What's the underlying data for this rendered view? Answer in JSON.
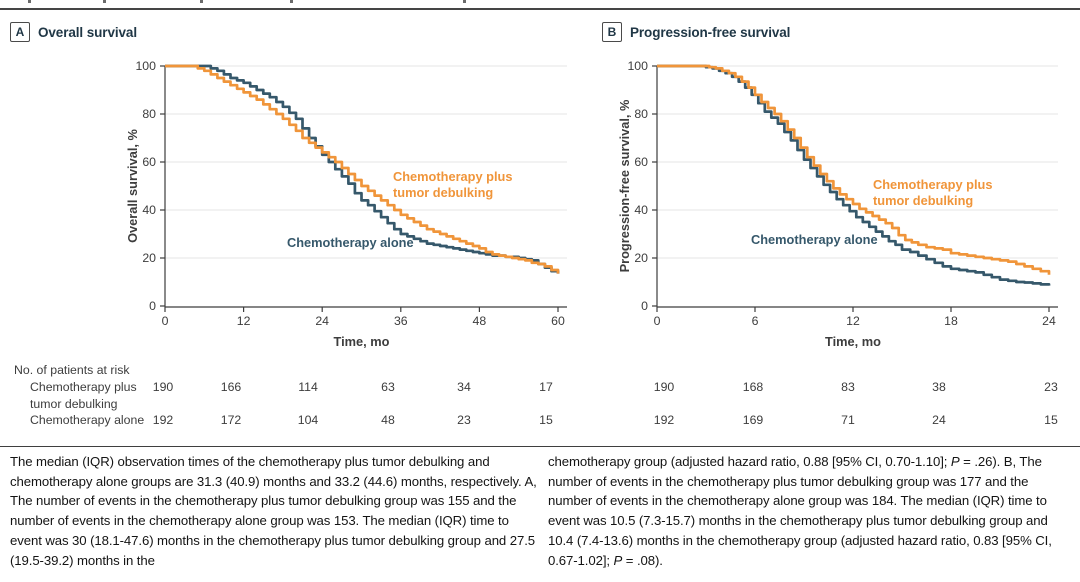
{
  "colors": {
    "debulking": "#F0953A",
    "alone": "#36586B",
    "grid": "#E4E4E4",
    "axis": "#3D3D3D",
    "tick_text": "#3D3D3D",
    "title_text": "#203746"
  },
  "panels": {
    "a": {
      "letter": "A",
      "title": "Overall survival"
    },
    "b": {
      "letter": "B",
      "title": "Progression-free survival"
    }
  },
  "chart_data": [
    {
      "id": "A",
      "type": "line",
      "subtype": "kaplan-meier-step",
      "title": "Overall survival",
      "xlabel": "Time, mo",
      "ylabel": "Overall survival, %",
      "xlim": [
        0,
        60
      ],
      "ylim": [
        0,
        100
      ],
      "x_ticks": [
        0,
        12,
        24,
        36,
        48,
        60
      ],
      "y_ticks": [
        0,
        20,
        40,
        60,
        80,
        100
      ],
      "grid": "horizontal",
      "series": [
        {
          "name": "Chemotherapy plus tumor debulking",
          "label_lines": [
            "Chemotherapy plus",
            "tumor debulking"
          ],
          "color_key": "debulking",
          "points": [
            [
              0,
              100
            ],
            [
              4,
              100
            ],
            [
              5,
              99
            ],
            [
              6,
              98
            ],
            [
              7,
              96.5
            ],
            [
              8,
              95
            ],
            [
              9,
              93.5
            ],
            [
              10,
              92
            ],
            [
              11,
              90.5
            ],
            [
              12,
              89
            ],
            [
              13,
              87.5
            ],
            [
              14,
              86
            ],
            [
              15,
              84
            ],
            [
              16,
              82
            ],
            [
              17,
              80
            ],
            [
              18,
              78
            ],
            [
              19,
              75.5
            ],
            [
              20,
              73
            ],
            [
              21,
              70
            ],
            [
              22,
              68
            ],
            [
              23,
              66
            ],
            [
              24,
              64
            ],
            [
              25,
              62
            ],
            [
              26,
              60
            ],
            [
              27,
              57.5
            ],
            [
              28,
              55
            ],
            [
              29,
              52.5
            ],
            [
              30,
              50
            ],
            [
              31,
              48
            ],
            [
              32,
              46
            ],
            [
              33,
              44
            ],
            [
              34,
              42
            ],
            [
              35,
              40
            ],
            [
              36,
              38
            ],
            [
              37,
              36.5
            ],
            [
              38,
              35
            ],
            [
              39,
              33.5
            ],
            [
              40,
              32
            ],
            [
              41,
              31
            ],
            [
              42,
              30
            ],
            [
              43,
              29
            ],
            [
              44,
              28
            ],
            [
              45,
              27
            ],
            [
              46,
              26
            ],
            [
              47,
              25
            ],
            [
              48,
              24
            ],
            [
              49,
              22.5
            ],
            [
              50,
              21.5
            ],
            [
              51,
              21
            ],
            [
              52,
              20.5
            ],
            [
              53,
              20
            ],
            [
              54,
              19.5
            ],
            [
              55,
              19
            ],
            [
              56,
              18
            ],
            [
              57,
              17.5
            ],
            [
              58,
              16.5
            ],
            [
              59,
              15
            ],
            [
              60,
              13.5
            ]
          ]
        },
        {
          "name": "Chemotherapy alone",
          "label_lines": [
            "Chemotherapy alone"
          ],
          "color_key": "alone",
          "points": [
            [
              0,
              100
            ],
            [
              6,
              100
            ],
            [
              7,
              99
            ],
            [
              8,
              98
            ],
            [
              9,
              96.5
            ],
            [
              10,
              95
            ],
            [
              11,
              94
            ],
            [
              12,
              93
            ],
            [
              13,
              91.5
            ],
            [
              14,
              90
            ],
            [
              15,
              88.5
            ],
            [
              16,
              87
            ],
            [
              17,
              85
            ],
            [
              18,
              83
            ],
            [
              19,
              80.5
            ],
            [
              20,
              78
            ],
            [
              21,
              74
            ],
            [
              22,
              70
            ],
            [
              23,
              66.5
            ],
            [
              24,
              63
            ],
            [
              25,
              60
            ],
            [
              26,
              57
            ],
            [
              27,
              54
            ],
            [
              28,
              51
            ],
            [
              29,
              47
            ],
            [
              30,
              44
            ],
            [
              31,
              42
            ],
            [
              32,
              39.5
            ],
            [
              33,
              37
            ],
            [
              34,
              34.5
            ],
            [
              35,
              32
            ],
            [
              36,
              30
            ],
            [
              37,
              29
            ],
            [
              38,
              28
            ],
            [
              39,
              27
            ],
            [
              40,
              26
            ],
            [
              41,
              25.5
            ],
            [
              42,
              25
            ],
            [
              43,
              24.5
            ],
            [
              44,
              24
            ],
            [
              45,
              23.5
            ],
            [
              46,
              23
            ],
            [
              47,
              22.5
            ],
            [
              48,
              22
            ],
            [
              49,
              21.5
            ],
            [
              50,
              21
            ],
            [
              51,
              21
            ],
            [
              52,
              20.5
            ],
            [
              53,
              20.5
            ],
            [
              54,
              20
            ],
            [
              55,
              19.5
            ],
            [
              56,
              19
            ],
            [
              57,
              17.5
            ],
            [
              58,
              16
            ],
            [
              59,
              14.5
            ],
            [
              60,
              13.5
            ]
          ]
        }
      ]
    },
    {
      "id": "B",
      "type": "line",
      "subtype": "kaplan-meier-step",
      "title": "Progression-free survival",
      "xlabel": "Time, mo",
      "ylabel": "Progression-free survival, %",
      "xlim": [
        0,
        24
      ],
      "ylim": [
        0,
        100
      ],
      "x_ticks": [
        0,
        6,
        12,
        18,
        24
      ],
      "y_ticks": [
        0,
        20,
        40,
        60,
        80,
        100
      ],
      "grid": "horizontal",
      "series": [
        {
          "name": "Chemotherapy plus tumor debulking",
          "label_lines": [
            "Chemotherapy plus",
            "tumor debulking"
          ],
          "color_key": "debulking",
          "points": [
            [
              0,
              100
            ],
            [
              2.8,
              100
            ],
            [
              3.2,
              99.5
            ],
            [
              3.6,
              99
            ],
            [
              4,
              98
            ],
            [
              4.4,
              97
            ],
            [
              4.8,
              95.5
            ],
            [
              5.2,
              93.5
            ],
            [
              5.6,
              91
            ],
            [
              6,
              88
            ],
            [
              6.4,
              85
            ],
            [
              6.8,
              82.5
            ],
            [
              7.2,
              80
            ],
            [
              7.6,
              77
            ],
            [
              8,
              73.5
            ],
            [
              8.4,
              70
            ],
            [
              8.8,
              66
            ],
            [
              9.2,
              62
            ],
            [
              9.6,
              58.5
            ],
            [
              10,
              55
            ],
            [
              10.4,
              52
            ],
            [
              10.8,
              49
            ],
            [
              11.2,
              46.5
            ],
            [
              11.6,
              44.5
            ],
            [
              12,
              42.5
            ],
            [
              12.4,
              40.5
            ],
            [
              12.8,
              39
            ],
            [
              13.2,
              37.5
            ],
            [
              13.6,
              36
            ],
            [
              14,
              34.5
            ],
            [
              14.4,
              32.5
            ],
            [
              14.8,
              29.5
            ],
            [
              15.2,
              27.5
            ],
            [
              15.6,
              26.5
            ],
            [
              16,
              25.5
            ],
            [
              16.5,
              24.5
            ],
            [
              17,
              24
            ],
            [
              17.5,
              23.5
            ],
            [
              18,
              22
            ],
            [
              18.5,
              21.5
            ],
            [
              19,
              21
            ],
            [
              19.5,
              20.5
            ],
            [
              20,
              20
            ],
            [
              20.5,
              19.5
            ],
            [
              21,
              19
            ],
            [
              21.5,
              18.5
            ],
            [
              22,
              17.5
            ],
            [
              22.5,
              16.5
            ],
            [
              23,
              15.5
            ],
            [
              23.5,
              14.5
            ],
            [
              24,
              13
            ]
          ]
        },
        {
          "name": "Chemotherapy alone",
          "label_lines": [
            "Chemotherapy alone"
          ],
          "color_key": "alone",
          "points": [
            [
              0,
              100
            ],
            [
              2.6,
              100
            ],
            [
              3,
              99.5
            ],
            [
              3.4,
              99
            ],
            [
              3.8,
              98
            ],
            [
              4.2,
              97
            ],
            [
              4.6,
              95.5
            ],
            [
              5,
              93.5
            ],
            [
              5.4,
              91
            ],
            [
              5.8,
              88
            ],
            [
              6.2,
              84.5
            ],
            [
              6.6,
              81
            ],
            [
              7,
              78.5
            ],
            [
              7.4,
              76
            ],
            [
              7.8,
              72.5
            ],
            [
              8.2,
              69
            ],
            [
              8.6,
              65
            ],
            [
              9,
              61
            ],
            [
              9.4,
              57.5
            ],
            [
              9.8,
              54
            ],
            [
              10.2,
              50.5
            ],
            [
              10.6,
              47.5
            ],
            [
              11,
              44.5
            ],
            [
              11.4,
              42
            ],
            [
              11.8,
              39.5
            ],
            [
              12.2,
              37
            ],
            [
              12.6,
              35
            ],
            [
              13,
              33
            ],
            [
              13.4,
              31
            ],
            [
              13.8,
              29
            ],
            [
              14.2,
              27
            ],
            [
              14.6,
              25.5
            ],
            [
              15,
              23.5
            ],
            [
              15.5,
              22.5
            ],
            [
              16,
              21
            ],
            [
              16.5,
              19.5
            ],
            [
              17,
              18
            ],
            [
              17.5,
              16.5
            ],
            [
              18,
              15.5
            ],
            [
              18.5,
              15
            ],
            [
              19,
              14.5
            ],
            [
              19.5,
              14
            ],
            [
              20,
              13
            ],
            [
              20.5,
              12
            ],
            [
              21,
              11
            ],
            [
              21.5,
              10.5
            ],
            [
              22,
              10
            ],
            [
              22.5,
              9.8
            ],
            [
              23,
              9.4
            ],
            [
              23.5,
              9
            ],
            [
              24,
              8.5
            ]
          ]
        }
      ]
    }
  ],
  "risk_table": {
    "header": "No. of patients at risk",
    "rows": [
      {
        "label_lines": [
          "Chemotherapy plus",
          "tumor debulking"
        ],
        "panel_a": [
          "190",
          "166",
          "114",
          "63",
          "34",
          "17"
        ],
        "panel_b": [
          "190",
          "168",
          "83",
          "38",
          "23"
        ]
      },
      {
        "label_lines": [
          "Chemotherapy alone"
        ],
        "panel_a": [
          "192",
          "172",
          "104",
          "48",
          "23",
          "15"
        ],
        "panel_b": [
          "192",
          "169",
          "71",
          "24",
          "15"
        ]
      }
    ]
  },
  "caption": {
    "left_segments": [
      {
        "t": "The median (IQR) observation times of the chemotherapy plus tumor debulking and chemotherapy alone groups are 31.3 (40.9) months and 33.2 (44.6) months, respectively. A, The number of events in the chemotherapy plus tumor debulking group was 155 and the number of events in the chemotherapy alone group was 153. The median (IQR) time to event was 30 (18.1-47.6) months in the chemotherapy plus tumor debulking group and 27.5 (19.5-39.2) months in the"
      }
    ],
    "right_segments": [
      {
        "t": "chemotherapy group (adjusted hazard ratio, 0.88 [95% CI, 0.70-1.10]; "
      },
      {
        "t": "P",
        "i": true
      },
      {
        "t": " = .26). B, The number of events in the chemotherapy plus tumor debulking group was 177 and the number of events in the chemotherapy alone group was 184. The median (IQR) time to event was 10.5 (7.3-15.7) months in the chemotherapy plus tumor debulking group and 10.4 (7.4-13.6) months in the chemotherapy group (adjusted hazard ratio, 0.83 [95% CI, 0.67-1.02]; "
      },
      {
        "t": "P",
        "i": true
      },
      {
        "t": " = .08)."
      }
    ]
  }
}
